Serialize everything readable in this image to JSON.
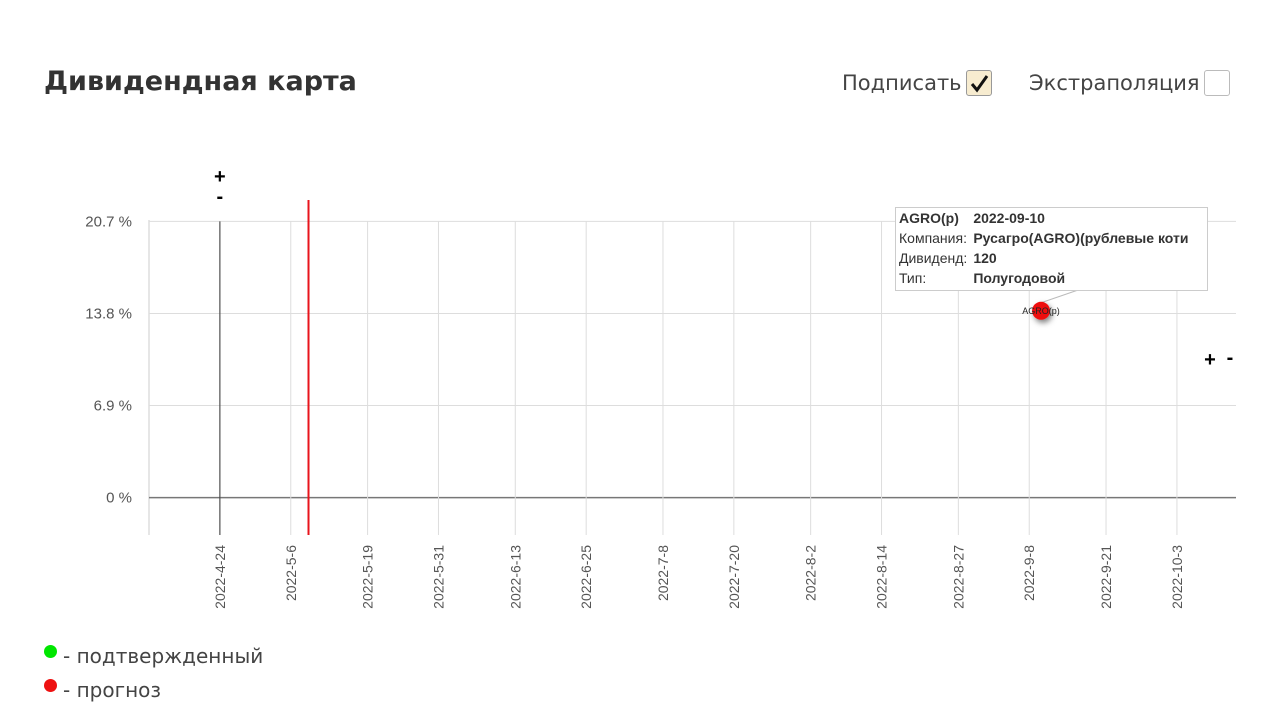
{
  "header": {
    "title": "Дивидендная карта",
    "options": [
      {
        "label": "Подписать",
        "checked": true
      },
      {
        "label": "Экстраполяция",
        "checked": false
      }
    ]
  },
  "chart_data": {
    "type": "scatter",
    "x": [
      "2022-9-10"
    ],
    "xlim": [
      "2022-4-12",
      "2022-10-13"
    ],
    "xticks": [
      "2022-4-24",
      "2022-5-6",
      "2022-5-19",
      "2022-5-31",
      "2022-6-13",
      "2022-6-25",
      "2022-7-8",
      "2022-7-20",
      "2022-8-2",
      "2022-8-14",
      "2022-8-27",
      "2022-9-8",
      "2022-9-21",
      "2022-10-3"
    ],
    "ylim": [
      -2.8,
      22.3
    ],
    "yticks": [
      {
        "value": 0,
        "label": "0 %"
      },
      {
        "value": 6.9,
        "label": "6.9 %"
      },
      {
        "value": 13.8,
        "label": "13.8 %"
      },
      {
        "value": 20.7,
        "label": "20.7 %"
      }
    ],
    "grid": true,
    "start_line": "2022-4-24",
    "today_line": {
      "x": "2022-5-9",
      "color": "#e8141c"
    },
    "series": [
      {
        "name": "- подтвержденный",
        "color": "#00e600",
        "x": [],
        "values": [],
        "point_labels": []
      },
      {
        "name": "- прогноз",
        "color": "#ee1111",
        "x": [
          "2022-9-10"
        ],
        "values": [
          14
        ],
        "point_labels": [
          "AGRO(p)"
        ]
      }
    ],
    "zoom": {
      "plus": "+",
      "minus": "-"
    }
  },
  "tooltip": {
    "rows": [
      [
        "AGRO(p)",
        "2022-09-10"
      ],
      [
        "Компания:",
        "Русагро(AGRO)(рублевые коти"
      ],
      [
        "Дивиденд:",
        "120"
      ],
      [
        "Тип:",
        "Полугодовой"
      ]
    ]
  }
}
